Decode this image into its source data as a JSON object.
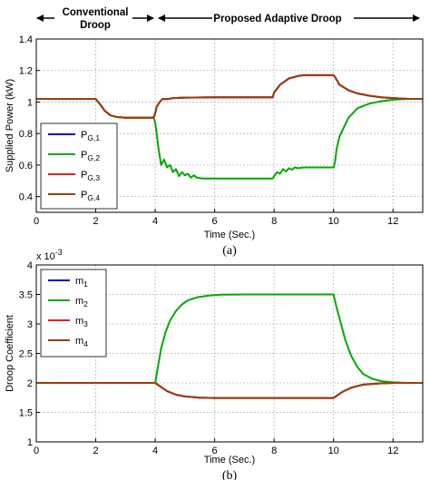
{
  "header": {
    "conventional": "Conventional",
    "droop": "Droop",
    "proposed": "Proposed Adaptive Droop"
  },
  "chart_data": [
    {
      "type": "line",
      "caption": "(a)",
      "xlabel": "Time (Sec.)",
      "ylabel": "Supplied Power (kW)",
      "xlim": [
        0,
        13
      ],
      "ylim": [
        0.3,
        1.4
      ],
      "xticks": [
        "0",
        "2",
        "4",
        "6",
        "8",
        "10",
        "12"
      ],
      "yticks": [
        "0.4",
        "0.6",
        "0.8",
        "1",
        "1.2",
        "1.4"
      ],
      "grid": true,
      "legend_position": "left-middle",
      "series": [
        {
          "name": "P",
          "sub": "G,1",
          "color": "#0000cc",
          "x": [
            0,
            2,
            2.15,
            2.3,
            2.5,
            2.7,
            3,
            3.5,
            3.95,
            4.0,
            4.05,
            4.15,
            4.25,
            4.4,
            4.6,
            5,
            6,
            7,
            7.95,
            8.0,
            8.2,
            8.5,
            8.8,
            9.0,
            10.0,
            10.05,
            10.2,
            10.5,
            10.8,
            11.2,
            11.6,
            12,
            12.5,
            13
          ],
          "y": [
            1.02,
            1.02,
            0.985,
            0.945,
            0.915,
            0.905,
            0.9,
            0.9,
            0.9,
            0.93,
            0.97,
            1.0,
            1.02,
            1.018,
            1.025,
            1.028,
            1.03,
            1.03,
            1.03,
            1.06,
            1.11,
            1.15,
            1.165,
            1.17,
            1.17,
            1.16,
            1.11,
            1.075,
            1.055,
            1.04,
            1.03,
            1.025,
            1.02,
            1.02
          ]
        },
        {
          "name": "P",
          "sub": "G,2",
          "color": "#00aa00",
          "x": [
            0,
            2,
            2.15,
            2.3,
            2.5,
            2.7,
            3,
            3.5,
            3.95,
            4.0,
            4.05,
            4.1,
            4.15,
            4.2,
            4.3,
            4.4,
            4.5,
            4.6,
            4.7,
            4.8,
            4.9,
            5.0,
            5.1,
            5.2,
            5.3,
            5.4,
            5.6,
            5.8,
            6,
            7,
            7.95,
            8.0,
            8.1,
            8.2,
            8.3,
            8.4,
            8.5,
            8.6,
            8.7,
            8.8,
            9.0,
            10.0,
            10.05,
            10.1,
            10.2,
            10.3,
            10.5,
            10.8,
            11.2,
            11.6,
            12,
            12.5,
            13
          ],
          "y": [
            1.02,
            1.02,
            0.985,
            0.945,
            0.915,
            0.905,
            0.9,
            0.9,
            0.9,
            0.87,
            0.8,
            0.72,
            0.66,
            0.6,
            0.635,
            0.585,
            0.6,
            0.555,
            0.575,
            0.53,
            0.555,
            0.535,
            0.545,
            0.52,
            0.535,
            0.52,
            0.515,
            0.515,
            0.515,
            0.515,
            0.515,
            0.53,
            0.555,
            0.545,
            0.575,
            0.56,
            0.58,
            0.57,
            0.585,
            0.58,
            0.585,
            0.585,
            0.62,
            0.7,
            0.78,
            0.82,
            0.9,
            0.96,
            0.99,
            1.005,
            1.015,
            1.02,
            1.02
          ]
        },
        {
          "name": "P",
          "sub": "G,3",
          "color": "#dd2222",
          "x": [
            0,
            2,
            2.15,
            2.3,
            2.5,
            2.7,
            3,
            3.5,
            3.95,
            4.0,
            4.05,
            4.15,
            4.25,
            4.4,
            4.6,
            5,
            6,
            7,
            7.95,
            8.0,
            8.2,
            8.5,
            8.8,
            9.0,
            10.0,
            10.05,
            10.2,
            10.5,
            10.8,
            11.2,
            11.6,
            12,
            12.5,
            13
          ],
          "y": [
            1.02,
            1.02,
            0.985,
            0.945,
            0.915,
            0.905,
            0.9,
            0.9,
            0.9,
            0.93,
            0.97,
            1.0,
            1.02,
            1.018,
            1.025,
            1.028,
            1.03,
            1.03,
            1.03,
            1.06,
            1.11,
            1.15,
            1.165,
            1.17,
            1.17,
            1.16,
            1.11,
            1.075,
            1.055,
            1.04,
            1.03,
            1.025,
            1.02,
            1.02
          ]
        },
        {
          "name": "P",
          "sub": "G,4",
          "color": "#9a3f0a",
          "x": [
            0,
            2,
            2.15,
            2.3,
            2.5,
            2.7,
            3,
            3.5,
            3.95,
            4.0,
            4.05,
            4.15,
            4.25,
            4.4,
            4.6,
            5,
            6,
            7,
            7.95,
            8.0,
            8.2,
            8.5,
            8.8,
            9.0,
            10.0,
            10.05,
            10.2,
            10.5,
            10.8,
            11.2,
            11.6,
            12,
            12.5,
            13
          ],
          "y": [
            1.02,
            1.02,
            0.985,
            0.945,
            0.915,
            0.905,
            0.9,
            0.9,
            0.9,
            0.93,
            0.97,
            1.0,
            1.02,
            1.018,
            1.025,
            1.028,
            1.03,
            1.03,
            1.03,
            1.06,
            1.11,
            1.15,
            1.165,
            1.17,
            1.17,
            1.16,
            1.11,
            1.075,
            1.055,
            1.04,
            1.03,
            1.025,
            1.02,
            1.02
          ]
        }
      ]
    },
    {
      "type": "line",
      "caption": "(b)",
      "xlabel": "Time (Sec.)",
      "ylabel": "Droop Coefficient",
      "multiplier": "x 10",
      "multiplier_exp": "-3",
      "xlim": [
        0,
        13
      ],
      "ylim": [
        1,
        4
      ],
      "xticks": [
        "0",
        "2",
        "4",
        "6",
        "8",
        "10",
        "12"
      ],
      "yticks": [
        "1",
        "1.5",
        "2",
        "2.5",
        "3",
        "3.5",
        "4"
      ],
      "grid": true,
      "legend_position": "top-left",
      "series": [
        {
          "name": "m",
          "sub": "1",
          "color": "#0000cc",
          "x": [
            0,
            4.0,
            4.2,
            4.4,
            4.7,
            5.0,
            5.5,
            6.0,
            7.0,
            8.0,
            9.0,
            10.0,
            10.1,
            10.3,
            10.6,
            11.0,
            11.5,
            12.0,
            12.5,
            13
          ],
          "y": [
            2.0,
            2.0,
            1.93,
            1.86,
            1.8,
            1.77,
            1.75,
            1.745,
            1.745,
            1.745,
            1.745,
            1.745,
            1.78,
            1.85,
            1.92,
            1.97,
            1.99,
            2.0,
            2.0,
            2.0
          ]
        },
        {
          "name": "m",
          "sub": "2",
          "color": "#00aa00",
          "x": [
            0,
            4.0,
            4.1,
            4.2,
            4.35,
            4.5,
            4.7,
            4.9,
            5.1,
            5.4,
            5.8,
            6.2,
            7.0,
            8.0,
            9.0,
            10.0,
            10.1,
            10.25,
            10.4,
            10.6,
            10.8,
            11.0,
            11.3,
            11.6,
            12.0,
            12.5,
            13
          ],
          "y": [
            2.0,
            2.0,
            2.3,
            2.58,
            2.86,
            3.06,
            3.22,
            3.33,
            3.4,
            3.45,
            3.48,
            3.495,
            3.5,
            3.5,
            3.5,
            3.5,
            3.28,
            3.0,
            2.72,
            2.45,
            2.27,
            2.15,
            2.07,
            2.03,
            2.01,
            2.0,
            2.0
          ]
        },
        {
          "name": "m",
          "sub": "3",
          "color": "#dd2222",
          "x": [
            0,
            4.0,
            4.2,
            4.4,
            4.7,
            5.0,
            5.5,
            6.0,
            7.0,
            8.0,
            9.0,
            10.0,
            10.1,
            10.3,
            10.6,
            11.0,
            11.5,
            12.0,
            12.5,
            13
          ],
          "y": [
            2.0,
            2.0,
            1.93,
            1.86,
            1.8,
            1.77,
            1.75,
            1.745,
            1.745,
            1.745,
            1.745,
            1.745,
            1.78,
            1.85,
            1.92,
            1.97,
            1.99,
            2.0,
            2.0,
            2.0
          ]
        },
        {
          "name": "m",
          "sub": "4",
          "color": "#9a3f0a",
          "x": [
            0,
            4.0,
            4.2,
            4.4,
            4.7,
            5.0,
            5.5,
            6.0,
            7.0,
            8.0,
            9.0,
            10.0,
            10.1,
            10.3,
            10.6,
            11.0,
            11.5,
            12.0,
            12.5,
            13
          ],
          "y": [
            2.0,
            2.0,
            1.93,
            1.86,
            1.8,
            1.77,
            1.75,
            1.745,
            1.745,
            1.745,
            1.745,
            1.745,
            1.78,
            1.85,
            1.92,
            1.97,
            1.99,
            2.0,
            2.0,
            2.0
          ]
        }
      ]
    }
  ]
}
